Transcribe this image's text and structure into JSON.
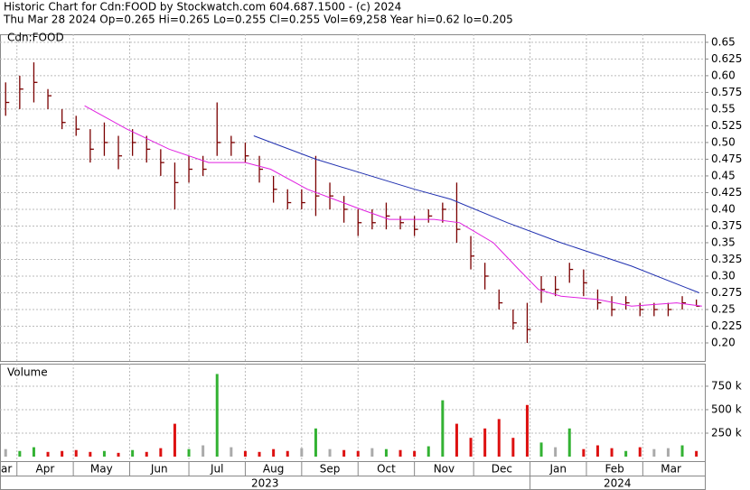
{
  "chart_data": {
    "type": "hlc",
    "title": "Historic Chart for Cdn:FOOD by Stockwatch.com 604.687.1500 - (c) 2024",
    "subtitle": "Thu Mar 28 2024   Op=0.265   Hi=0.265   Lo=0.255   Cl=0.255   Vol=69,258   Year hi=0.62   lo=0.205",
    "symbol": "Cdn:FOOD",
    "volume_label": "Volume",
    "edge_label": "ar",
    "years": [
      "2023",
      "2024"
    ],
    "xlim": [
      0,
      250
    ],
    "xticks": [
      {
        "value": 6,
        "label": "Apr"
      },
      {
        "value": 26,
        "label": "May"
      },
      {
        "value": 46,
        "label": "Jun"
      },
      {
        "value": 67,
        "label": "Jul"
      },
      {
        "value": 87,
        "label": "Aug"
      },
      {
        "value": 107,
        "label": "Sep"
      },
      {
        "value": 127,
        "label": "Oct"
      },
      {
        "value": 147,
        "label": "Nov"
      },
      {
        "value": 168,
        "label": "Dec"
      },
      {
        "value": 188,
        "label": "Jan"
      },
      {
        "value": 208,
        "label": "Feb"
      },
      {
        "value": 228,
        "label": "Mar"
      }
    ],
    "ylim": [
      0.173,
      0.662
    ],
    "yticks": [
      {
        "value": 0.2,
        "label": "0.20"
      },
      0.225,
      0.25,
      0.275,
      {
        "value": 0.3,
        "label": "0.30"
      },
      0.325,
      0.35,
      0.375,
      {
        "value": 0.4,
        "label": "0.40"
      },
      0.425,
      0.45,
      0.475,
      {
        "value": 0.5,
        "label": "0.50"
      },
      0.525,
      0.55,
      0.575,
      {
        "value": 0.6,
        "label": "0.60"
      },
      0.625,
      0.65
    ],
    "y2lim": [
      -48000,
      990000
    ],
    "y2ticks": [
      {
        "value": 250000,
        "label": "250 k"
      },
      {
        "value": 500000,
        "label": "500 k"
      },
      {
        "value": 750000,
        "label": "750 k"
      }
    ],
    "grid": true,
    "x": [
      2,
      7,
      12,
      17,
      22,
      27,
      32,
      37,
      42,
      47,
      52,
      57,
      62,
      67,
      72,
      77,
      82,
      87,
      92,
      97,
      102,
      107,
      112,
      117,
      122,
      127,
      132,
      137,
      142,
      147,
      152,
      157,
      162,
      167,
      172,
      177,
      182,
      187,
      192,
      197,
      202,
      207,
      212,
      217,
      222,
      227,
      232,
      237,
      242,
      247
    ],
    "high": [
      0.59,
      0.6,
      0.62,
      0.58,
      0.55,
      0.54,
      0.52,
      0.53,
      0.51,
      0.52,
      0.51,
      0.49,
      0.47,
      0.48,
      0.48,
      0.56,
      0.51,
      0.5,
      0.48,
      0.45,
      0.43,
      0.43,
      0.48,
      0.44,
      0.42,
      0.4,
      0.4,
      0.41,
      0.39,
      0.39,
      0.4,
      0.41,
      0.44,
      0.36,
      0.32,
      0.28,
      0.25,
      0.26,
      0.3,
      0.3,
      0.32,
      0.31,
      0.28,
      0.27,
      0.27,
      0.26,
      0.26,
      0.26,
      0.27,
      0.265
    ],
    "low": [
      0.54,
      0.55,
      0.56,
      0.55,
      0.52,
      0.51,
      0.47,
      0.48,
      0.46,
      0.48,
      0.47,
      0.45,
      0.4,
      0.44,
      0.45,
      0.48,
      0.48,
      0.47,
      0.44,
      0.41,
      0.4,
      0.4,
      0.39,
      0.4,
      0.38,
      0.36,
      0.37,
      0.37,
      0.37,
      0.36,
      0.38,
      0.38,
      0.35,
      0.31,
      0.28,
      0.25,
      0.22,
      0.2,
      0.26,
      0.27,
      0.29,
      0.27,
      0.25,
      0.24,
      0.25,
      0.24,
      0.24,
      0.24,
      0.25,
      0.255
    ],
    "close": [
      0.56,
      0.58,
      0.59,
      0.57,
      0.53,
      0.52,
      0.49,
      0.5,
      0.48,
      0.5,
      0.49,
      0.47,
      0.44,
      0.46,
      0.46,
      0.5,
      0.5,
      0.48,
      0.46,
      0.43,
      0.41,
      0.41,
      0.42,
      0.42,
      0.4,
      0.38,
      0.38,
      0.39,
      0.38,
      0.37,
      0.39,
      0.4,
      0.37,
      0.33,
      0.3,
      0.26,
      0.23,
      0.22,
      0.28,
      0.28,
      0.31,
      0.29,
      0.26,
      0.25,
      0.26,
      0.25,
      0.25,
      0.25,
      0.26,
      0.255
    ],
    "volume": [
      80000,
      60000,
      100000,
      50000,
      60000,
      70000,
      50000,
      60000,
      40000,
      70000,
      50000,
      90000,
      350000,
      80000,
      120000,
      880000,
      100000,
      60000,
      50000,
      80000,
      60000,
      90000,
      300000,
      80000,
      70000,
      60000,
      90000,
      80000,
      70000,
      60000,
      110000,
      600000,
      350000,
      200000,
      300000,
      400000,
      200000,
      550000,
      150000,
      100000,
      300000,
      80000,
      120000,
      90000,
      60000,
      100000,
      80000,
      90000,
      120000,
      60000
    ],
    "colors": {
      "bar": "#7a0000",
      "up": "#33b233",
      "down": "#dd1111",
      "flat": "#aaaaaa"
    },
    "series": [
      {
        "color": "#e020e0",
        "x": [
          30,
          45,
          60,
          74,
          87,
          96,
          109,
          128,
          138,
          154,
          163,
          175,
          184,
          191,
          199,
          212,
          224,
          240,
          249
        ],
        "values": [
          0.555,
          0.52,
          0.49,
          0.47,
          0.47,
          0.46,
          0.43,
          0.4,
          0.385,
          0.385,
          0.38,
          0.35,
          0.31,
          0.28,
          0.27,
          0.265,
          0.255,
          0.26,
          0.255
        ]
      },
      {
        "color": "#2030b0",
        "x": [
          90,
          112,
          147,
          160,
          180,
          199,
          224,
          248
        ],
        "values": [
          0.51,
          0.475,
          0.43,
          0.415,
          0.38,
          0.35,
          0.315,
          0.275
        ]
      }
    ]
  }
}
